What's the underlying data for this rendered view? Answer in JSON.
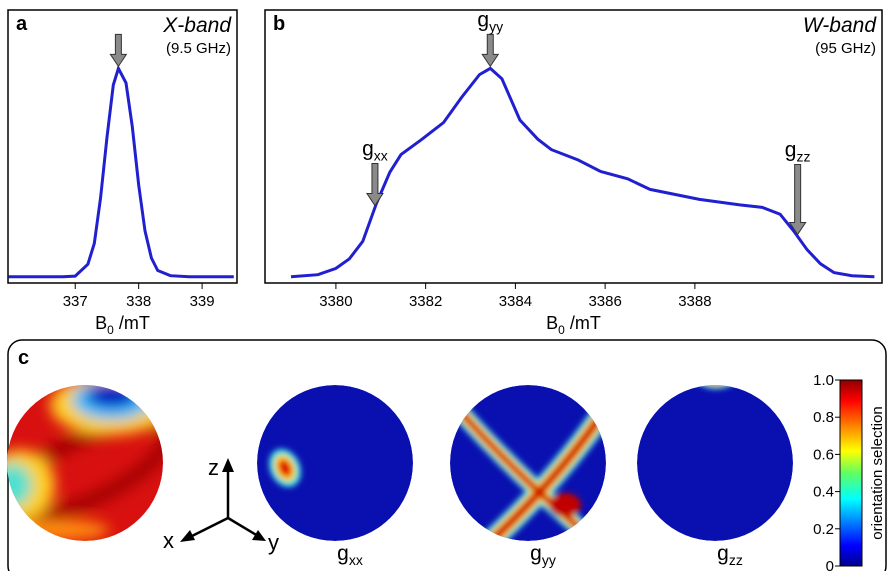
{
  "chart_data": [
    {
      "type": "line",
      "panel": "a",
      "band": "X-band",
      "freq": "(9.5 GHz)",
      "xlabel": {
        "main": "B",
        "sub": "0",
        "rest": " /mT"
      },
      "xlim": [
        335.94,
        339.55
      ],
      "xticks": [
        337,
        338,
        339
      ],
      "ylim": [
        -0.03,
        1.28
      ],
      "series": [
        {
          "color": "#2020d0",
          "x": [
            335.95,
            336.8,
            337.0,
            337.2,
            337.3,
            337.4,
            337.5,
            337.6,
            337.68,
            337.8,
            337.9,
            338.0,
            338.1,
            338.2,
            338.3,
            338.5,
            338.8,
            339.5
          ],
          "values": [
            0,
            0,
            0.003,
            0.06,
            0.16,
            0.38,
            0.67,
            0.92,
            1,
            0.93,
            0.72,
            0.44,
            0.22,
            0.09,
            0.03,
            0.005,
            0,
            0
          ]
        }
      ],
      "annotations": [
        {
          "x": 337.68
        }
      ]
    },
    {
      "type": "line",
      "panel": "b",
      "band": "W-band",
      "freq": "(95 GHz)",
      "xlabel": {
        "main": "B",
        "sub": "0",
        "rest": " /mT"
      },
      "xlim": [
        3378.42,
        3392.17
      ],
      "xticks": [
        3380,
        3382,
        3384,
        3386,
        3388
      ],
      "ylim": [
        -0.03,
        1.28
      ],
      "series": [
        {
          "color": "#2020d0",
          "x": [
            3379.0,
            3379.6,
            3380.0,
            3380.3,
            3380.6,
            3380.9,
            3381.2,
            3381.45,
            3381.9,
            3382.4,
            3382.8,
            3383.2,
            3383.44,
            3383.7,
            3384.1,
            3384.5,
            3384.8,
            3385.4,
            3385.9,
            3386.5,
            3387.0,
            3388.1,
            3389.0,
            3389.5,
            3389.9,
            3390.2,
            3390.5,
            3390.8,
            3391.1,
            3391.5,
            3392.0
          ],
          "values": [
            0,
            0.01,
            0.04,
            0.086,
            0.17,
            0.35,
            0.5,
            0.586,
            0.657,
            0.74,
            0.86,
            0.97,
            1,
            0.95,
            0.752,
            0.66,
            0.61,
            0.56,
            0.505,
            0.47,
            0.419,
            0.371,
            0.345,
            0.333,
            0.3,
            0.22,
            0.13,
            0.062,
            0.02,
            0.005,
            0
          ]
        }
      ],
      "annotations": [
        {
          "x": 3383.44,
          "text": "g",
          "sub": "yy"
        },
        {
          "x": 3380.87,
          "text": "g",
          "sub": "xx"
        },
        {
          "x": 3390.29,
          "text": "g",
          "sub": "zz"
        }
      ]
    }
  ],
  "panel_c": {
    "label": "c",
    "axes": [
      "z",
      "x",
      "y"
    ],
    "maps": [
      {
        "text": "g",
        "sub": "xx"
      },
      {
        "text": "g",
        "sub": "yy"
      },
      {
        "text": "g",
        "sub": "zz"
      }
    ],
    "colorbar": {
      "label": "orientation selection",
      "lim": [
        0,
        1
      ],
      "ticks": [
        0,
        0.2,
        0.4,
        0.6,
        0.8,
        {
          "value": 1,
          "label": "1.0"
        }
      ]
    }
  }
}
